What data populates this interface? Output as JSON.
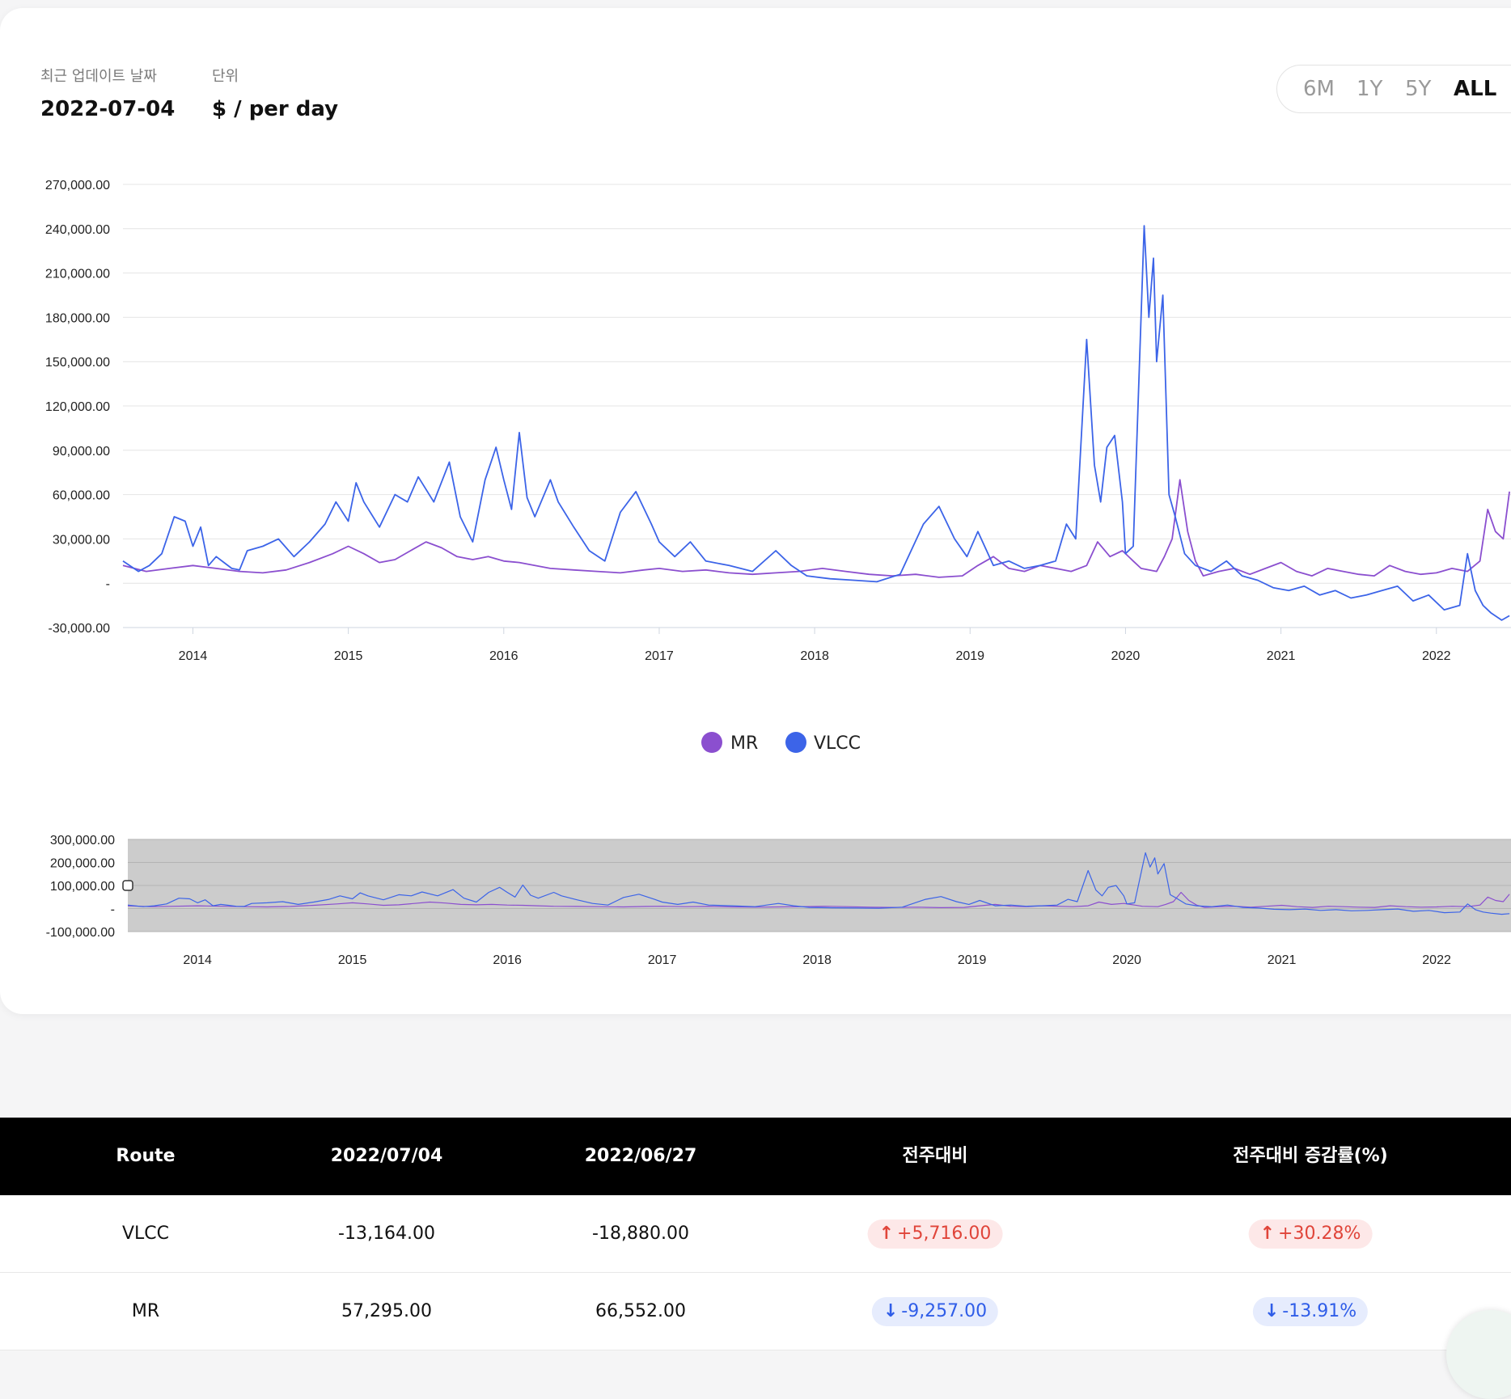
{
  "header": {
    "updated_label": "최근 업데이트 날짜",
    "updated_value": "2022-07-04",
    "unit_label": "단위",
    "unit_value": "$ / per day"
  },
  "range_buttons": [
    "6M",
    "1Y",
    "5Y",
    "ALL"
  ],
  "range_selected": "ALL",
  "colors": {
    "MR": "#8b4fcf",
    "VLCC": "#3c64e8",
    "up": "#e0453a",
    "down": "#2f5de8"
  },
  "chart_data": [
    {
      "type": "line",
      "title": "",
      "xlabel": "",
      "ylabel": "",
      "ylim": [
        -30000,
        270000
      ],
      "y_ticks": [
        "270,000.00",
        "240,000.00",
        "210,000.00",
        "180,000.00",
        "150,000.00",
        "120,000.00",
        "90,000.00",
        "60,000.00",
        "30,000.00",
        "-",
        "-30,000.00"
      ],
      "x_ticks": [
        "2014",
        "2015",
        "2016",
        "2017",
        "2018",
        "2019",
        "2020",
        "2021",
        "2022"
      ],
      "grid": true,
      "legend_position": "bottom-center",
      "series": [
        {
          "name": "VLCC",
          "x": [
            2013.55,
            2013.65,
            2013.72,
            2013.8,
            2013.88,
            2013.95,
            2014.0,
            2014.05,
            2014.1,
            2014.15,
            2014.2,
            2014.25,
            2014.3,
            2014.35,
            2014.45,
            2014.55,
            2014.65,
            2014.75,
            2014.85,
            2014.92,
            2015.0,
            2015.05,
            2015.1,
            2015.2,
            2015.3,
            2015.38,
            2015.45,
            2015.55,
            2015.65,
            2015.72,
            2015.8,
            2015.88,
            2015.95,
            2016.0,
            2016.05,
            2016.1,
            2016.15,
            2016.2,
            2016.3,
            2016.35,
            2016.45,
            2016.55,
            2016.65,
            2016.75,
            2016.85,
            2016.95,
            2017.0,
            2017.1,
            2017.2,
            2017.3,
            2017.45,
            2017.6,
            2017.75,
            2017.85,
            2017.95,
            2018.1,
            2018.25,
            2018.4,
            2018.55,
            2018.7,
            2018.8,
            2018.9,
            2018.98,
            2019.05,
            2019.15,
            2019.25,
            2019.35,
            2019.45,
            2019.55,
            2019.62,
            2019.68,
            2019.75,
            2019.8,
            2019.84,
            2019.88,
            2019.93,
            2019.98,
            2020.0,
            2020.05,
            2020.12,
            2020.15,
            2020.18,
            2020.2,
            2020.24,
            2020.28,
            2020.32,
            2020.38,
            2020.45,
            2020.55,
            2020.65,
            2020.75,
            2020.85,
            2020.95,
            2021.05,
            2021.15,
            2021.25,
            2021.35,
            2021.45,
            2021.55,
            2021.65,
            2021.75,
            2021.85,
            2021.95,
            2022.05,
            2022.15,
            2022.2,
            2022.25,
            2022.3,
            2022.35,
            2022.42,
            2022.47
          ],
          "values": [
            15000,
            8000,
            12000,
            20000,
            45000,
            42000,
            25000,
            38000,
            12000,
            18000,
            14000,
            10000,
            9000,
            22000,
            25000,
            30000,
            18000,
            28000,
            40000,
            55000,
            42000,
            68000,
            55000,
            38000,
            60000,
            55000,
            72000,
            55000,
            82000,
            45000,
            28000,
            70000,
            92000,
            70000,
            50000,
            102000,
            58000,
            45000,
            70000,
            55000,
            38000,
            22000,
            15000,
            48000,
            62000,
            40000,
            28000,
            18000,
            28000,
            15000,
            12000,
            8000,
            22000,
            12000,
            5000,
            3000,
            2000,
            1000,
            6000,
            40000,
            52000,
            30000,
            18000,
            35000,
            12000,
            15000,
            10000,
            12000,
            15000,
            40000,
            30000,
            165000,
            80000,
            55000,
            92000,
            100000,
            55000,
            20000,
            25000,
            242000,
            180000,
            220000,
            150000,
            195000,
            60000,
            45000,
            20000,
            12000,
            8000,
            15000,
            5000,
            2000,
            -3000,
            -5000,
            -2000,
            -8000,
            -5000,
            -10000,
            -8000,
            -5000,
            -2000,
            -12000,
            -8000,
            -18000,
            -15000,
            20000,
            -5000,
            -15000,
            -20000,
            -25000,
            -22000
          ]
        },
        {
          "name": "MR",
          "x": [
            2013.55,
            2013.7,
            2013.85,
            2014.0,
            2014.15,
            2014.3,
            2014.45,
            2014.6,
            2014.75,
            2014.9,
            2015.0,
            2015.1,
            2015.2,
            2015.3,
            2015.4,
            2015.5,
            2015.6,
            2015.7,
            2015.8,
            2015.9,
            2016.0,
            2016.1,
            2016.2,
            2016.3,
            2016.45,
            2016.6,
            2016.75,
            2016.9,
            2017.0,
            2017.15,
            2017.3,
            2017.45,
            2017.6,
            2017.75,
            2017.9,
            2018.05,
            2018.2,
            2018.35,
            2018.5,
            2018.65,
            2018.8,
            2018.95,
            2019.05,
            2019.15,
            2019.25,
            2019.35,
            2019.45,
            2019.55,
            2019.65,
            2019.75,
            2019.82,
            2019.9,
            2019.98,
            2020.05,
            2020.1,
            2020.2,
            2020.25,
            2020.3,
            2020.35,
            2020.4,
            2020.45,
            2020.5,
            2020.6,
            2020.7,
            2020.8,
            2020.9,
            2021.0,
            2021.1,
            2021.2,
            2021.3,
            2021.4,
            2021.5,
            2021.6,
            2021.7,
            2021.8,
            2021.9,
            2022.0,
            2022.1,
            2022.2,
            2022.28,
            2022.33,
            2022.38,
            2022.43,
            2022.47
          ],
          "values": [
            12000,
            8000,
            10000,
            12000,
            10000,
            8000,
            7000,
            9000,
            14000,
            20000,
            25000,
            20000,
            14000,
            16000,
            22000,
            28000,
            24000,
            18000,
            16000,
            18000,
            15000,
            14000,
            12000,
            10000,
            9000,
            8000,
            7000,
            9000,
            10000,
            8000,
            9000,
            7000,
            6000,
            7000,
            8000,
            10000,
            8000,
            6000,
            5000,
            6000,
            4000,
            5000,
            12000,
            18000,
            10000,
            8000,
            12000,
            10000,
            8000,
            12000,
            28000,
            18000,
            22000,
            15000,
            10000,
            8000,
            18000,
            30000,
            70000,
            35000,
            15000,
            5000,
            8000,
            10000,
            6000,
            10000,
            14000,
            8000,
            5000,
            10000,
            8000,
            6000,
            5000,
            12000,
            8000,
            6000,
            7000,
            10000,
            8000,
            15000,
            50000,
            35000,
            30000,
            62000
          ]
        }
      ]
    },
    {
      "type": "area",
      "title": "",
      "ylim": [
        -100000,
        300000
      ],
      "y_ticks": [
        "300,000.00",
        "200,000.00",
        "100,000.00",
        "-",
        "-100,000.00"
      ],
      "x_ticks": [
        "2014",
        "2015",
        "2016",
        "2017",
        "2018",
        "2019",
        "2020",
        "2021",
        "2022"
      ],
      "series_ref": [
        "VLCC",
        "MR"
      ]
    }
  ],
  "table": {
    "headers": [
      "Route",
      "2022/07/04",
      "2022/06/27",
      "전주대비",
      "전주대비 증감률(%)"
    ],
    "rows": [
      {
        "route": "VLCC",
        "current": "-13,164.00",
        "previous": "-18,880.00",
        "change": "+5,716.00",
        "change_pct": "+30.28%",
        "direction": "up"
      },
      {
        "route": "MR",
        "current": "57,295.00",
        "previous": "66,552.00",
        "change": "-9,257.00",
        "change_pct": "-13.91%",
        "direction": "down"
      }
    ]
  }
}
